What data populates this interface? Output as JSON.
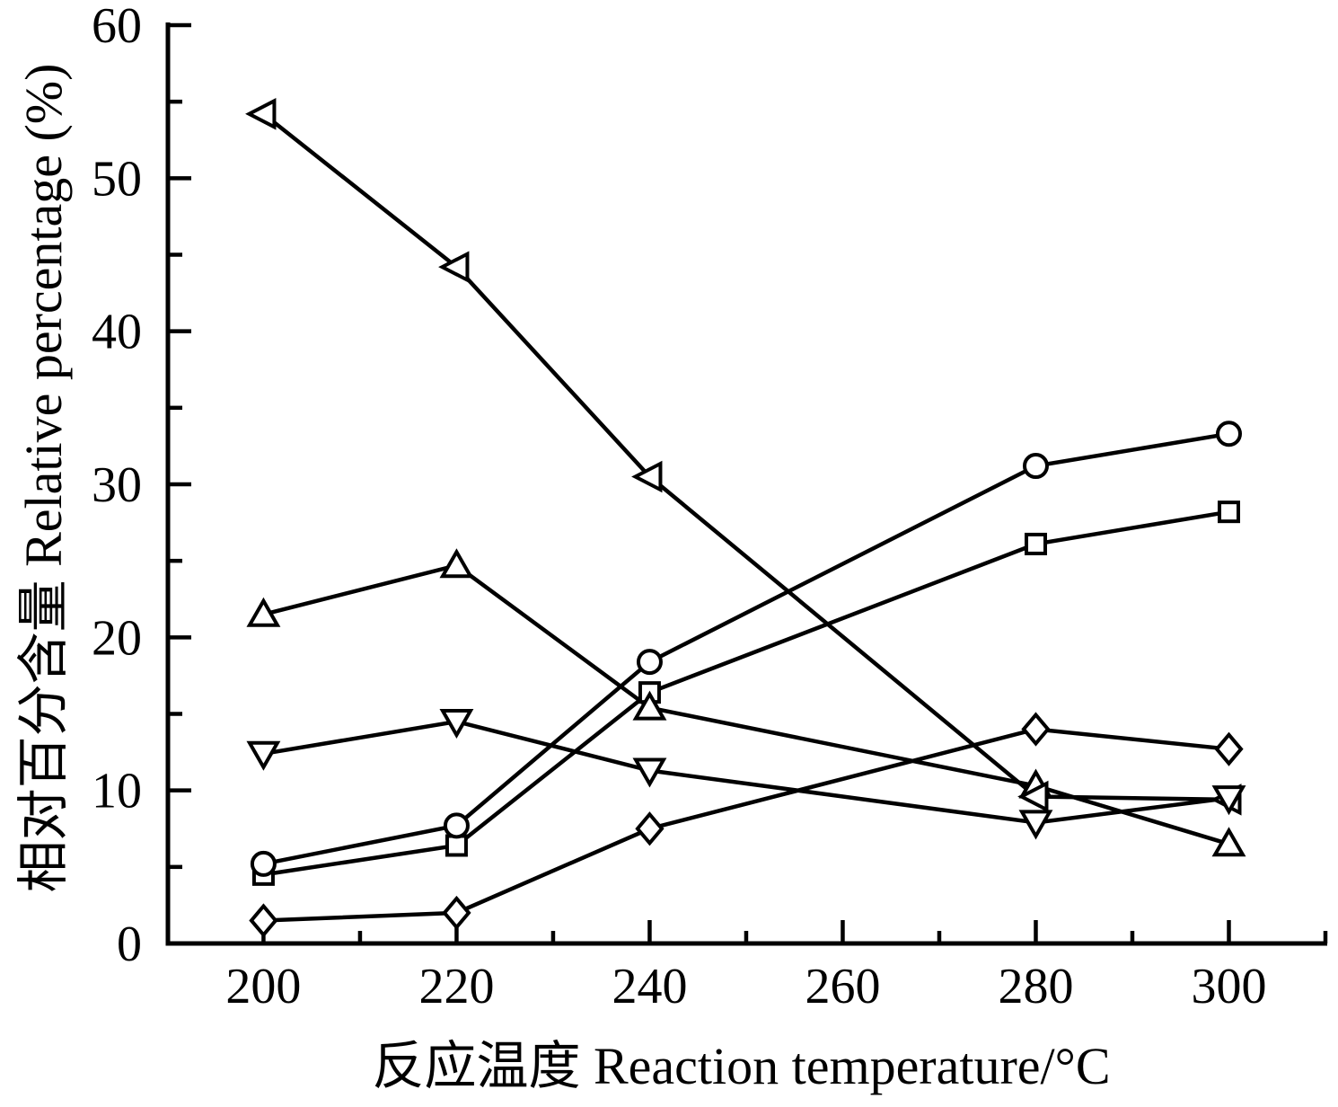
{
  "chart_data": {
    "type": "line",
    "title": "",
    "xlabel": "反应温度  Reaction temperature/°C",
    "ylabel": "相对百分含量 Relative percentage (%)",
    "xlim": [
      190.1,
      310
    ],
    "ylim": [
      0,
      60
    ],
    "x_major_ticks": [
      200,
      220,
      240,
      260,
      280,
      300
    ],
    "x_minor_ticks": [
      210,
      230,
      250,
      270,
      290,
      310
    ],
    "y_major_ticks": [
      0,
      10,
      20,
      30,
      40,
      50,
      60
    ],
    "y_minor_ticks": [
      5,
      15,
      25,
      35,
      45,
      55
    ],
    "x": [
      200,
      220,
      240,
      280,
      300
    ],
    "series": [
      {
        "name": "square-series",
        "marker": "square",
        "values": [
          4.5,
          6.4,
          16.4,
          26.1,
          28.2
        ]
      },
      {
        "name": "circle-series",
        "marker": "circle",
        "values": [
          5.2,
          7.7,
          18.4,
          31.2,
          33.3
        ]
      },
      {
        "name": "triangle-up-series",
        "marker": "triangle-up",
        "values": [
          21.5,
          24.7,
          15.4,
          10.3,
          6.5
        ]
      },
      {
        "name": "diamond-series",
        "marker": "diamond",
        "values": [
          1.5,
          2.0,
          7.5,
          14.0,
          12.7
        ]
      },
      {
        "name": "triangle-left-series",
        "marker": "triangle-left",
        "values": [
          54.2,
          44.2,
          30.5,
          9.6,
          9.4
        ]
      },
      {
        "name": "triangle-down-series",
        "marker": "triangle-down",
        "values": [
          12.4,
          14.5,
          11.3,
          7.9,
          9.5
        ]
      }
    ],
    "grid": false,
    "legend": false,
    "colors": {
      "stroke": "#000000",
      "marker_fill": "#ffffff",
      "background": "#ffffff"
    }
  }
}
